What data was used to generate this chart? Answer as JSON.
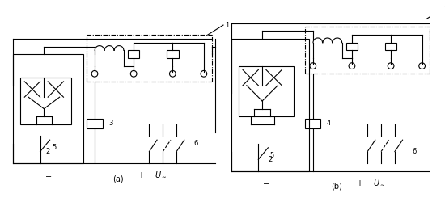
{
  "bg_color": "#ffffff",
  "lc": "#000000",
  "lw": 0.8,
  "fig_w": 5.5,
  "fig_h": 2.5,
  "label_a": "(a)",
  "label_b": "(b)"
}
